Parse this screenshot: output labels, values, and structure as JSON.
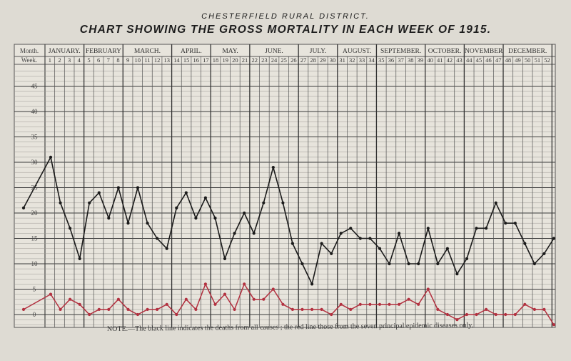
{
  "header": {
    "district": "CHESTERFIELD RURAL DISTRICT.",
    "title": "CHART SHOWING THE GROSS MORTALITY IN EACH WEEK OF 1915."
  },
  "note": "NOTE.—The black line indicates the deaths from all causes ; the red line those from the seven principal epidemic diseases only.",
  "chart_data": {
    "type": "line",
    "title": "CHART SHOWING THE GROSS MORTALITY IN EACH WEEK OF 1915.",
    "row_labels": {
      "month": "Month.",
      "week": "Week."
    },
    "months": [
      {
        "label": "JANUARY.",
        "weeks": 4
      },
      {
        "label": "FEBRUARY",
        "weeks": 4
      },
      {
        "label": "MARCH.",
        "weeks": 5
      },
      {
        "label": "APRIL.",
        "weeks": 4
      },
      {
        "label": "MAY.",
        "weeks": 4
      },
      {
        "label": "JUNE.",
        "weeks": 5
      },
      {
        "label": "JULY.",
        "weeks": 4
      },
      {
        "label": "AUGUST.",
        "weeks": 4
      },
      {
        "label": "SEPTEMBER.",
        "weeks": 5
      },
      {
        "label": "OCTOBER.",
        "weeks": 4
      },
      {
        "label": "NOVEMBER",
        "weeks": 4
      },
      {
        "label": "DECEMBER.",
        "weeks": 5
      }
    ],
    "weeks": [
      1,
      2,
      3,
      4,
      5,
      6,
      7,
      8,
      9,
      10,
      11,
      12,
      13,
      14,
      15,
      16,
      17,
      18,
      19,
      20,
      21,
      22,
      23,
      24,
      25,
      26,
      27,
      28,
      29,
      30,
      31,
      32,
      33,
      34,
      35,
      36,
      37,
      38,
      39,
      40,
      41,
      42,
      43,
      44,
      45,
      46,
      47,
      48,
      49,
      50,
      51,
      52
    ],
    "y_ticks": [
      0,
      5,
      10,
      15,
      20,
      25,
      30,
      35,
      40,
      45
    ],
    "ylim": [
      0,
      50
    ],
    "series": [
      {
        "color": "#1a1a1a",
        "start": 21,
        "values": [
          31,
          22,
          17,
          11,
          22,
          24,
          19,
          25,
          18,
          25,
          18,
          15,
          13,
          21,
          24,
          19,
          23,
          19,
          11,
          16,
          20,
          16,
          22,
          29,
          22,
          14,
          10,
          6,
          14,
          12,
          16,
          17,
          15,
          15,
          13,
          10,
          16,
          10,
          10,
          17,
          10,
          13,
          8,
          11,
          17,
          17,
          22,
          18,
          18,
          14,
          10,
          12,
          15
        ]
      },
      {
        "color": "#b2303f",
        "start": 1,
        "values": [
          4,
          1,
          3,
          2,
          0,
          1,
          1,
          3,
          1,
          0,
          1,
          1,
          2,
          0,
          3,
          1,
          6,
          2,
          4,
          1,
          6,
          3,
          3,
          5,
          2,
          1,
          1,
          1,
          1,
          0,
          2,
          1,
          2,
          2,
          2,
          2,
          2,
          3,
          2,
          5,
          1,
          0,
          -1,
          0,
          0,
          1,
          0,
          0,
          0,
          2,
          1,
          1,
          -2
        ]
      }
    ],
    "grid": true
  }
}
